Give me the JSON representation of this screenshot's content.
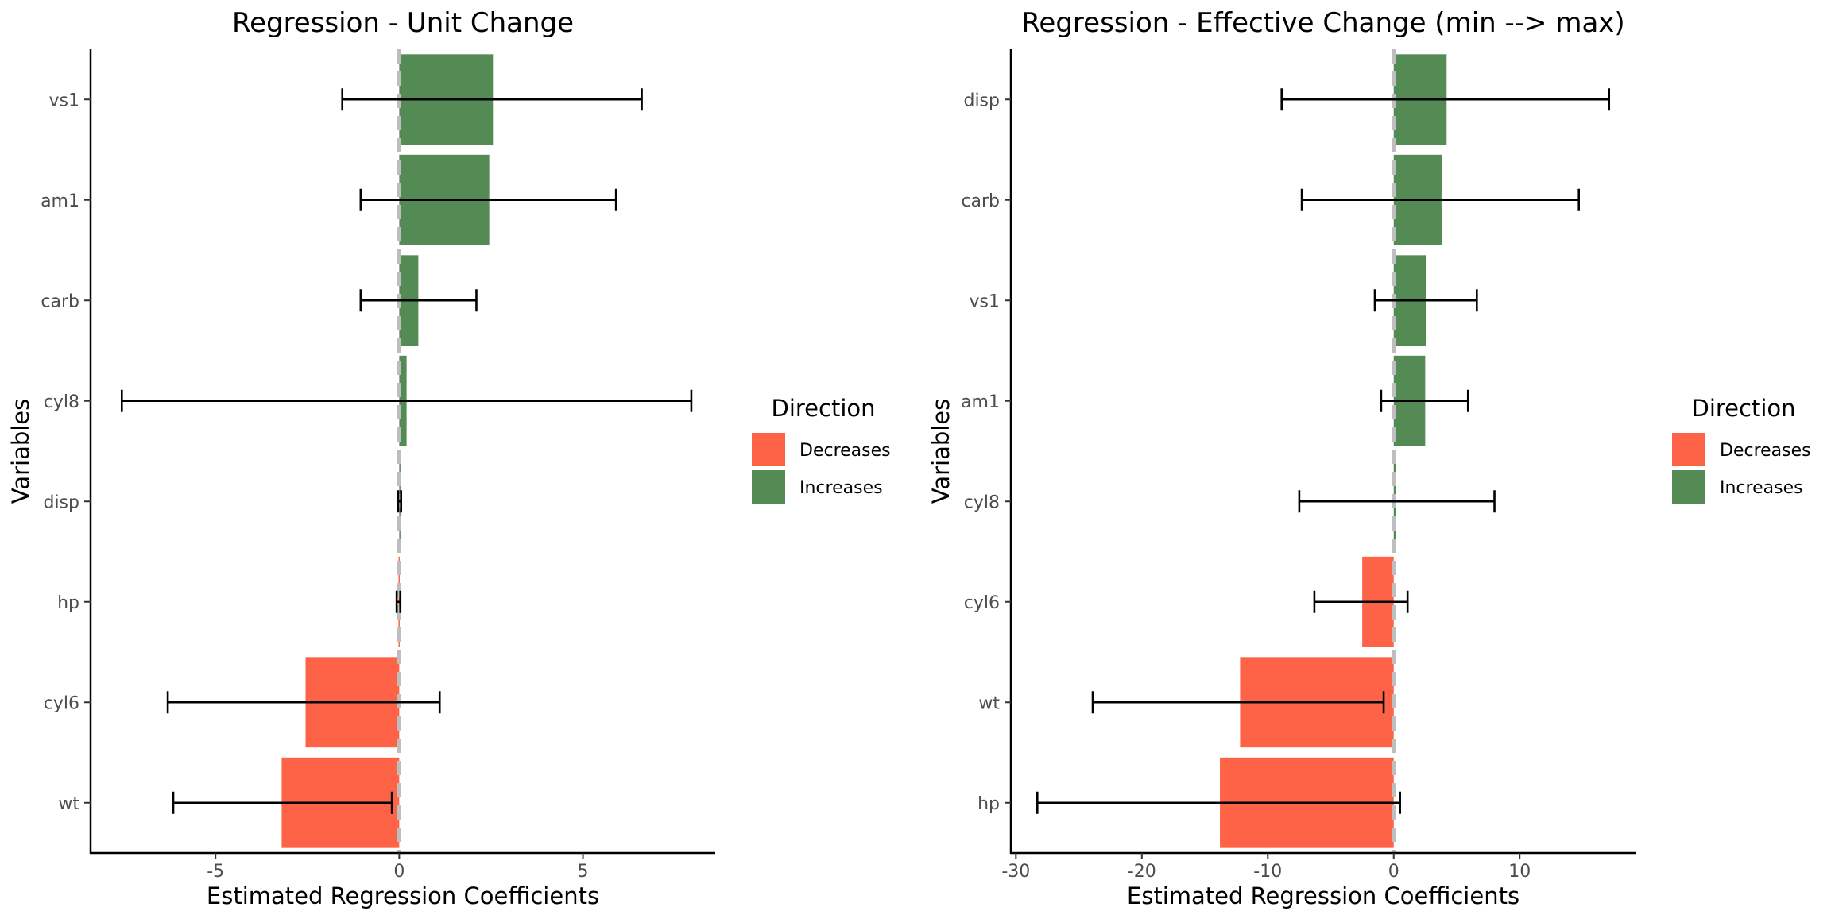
{
  "chart_data": [
    {
      "type": "bar",
      "orientation": "horizontal",
      "title": "Regression - Unit Change",
      "xlabel": "Estimated Regression Coefficients",
      "ylabel": "Variables",
      "xlim": [
        -8.4,
        8.6
      ],
      "xticks": [
        -5,
        0,
        5
      ],
      "categories": [
        "vs1",
        "am1",
        "carb",
        "cyl8",
        "disp",
        "hp",
        "cyl6",
        "wt"
      ],
      "values": [
        2.55,
        2.45,
        0.52,
        0.2,
        0.01,
        -0.02,
        -2.55,
        -3.2
      ],
      "error_low": [
        -1.55,
        -1.05,
        -1.05,
        -7.55,
        -0.03,
        -0.07,
        -6.3,
        -6.15
      ],
      "error_high": [
        6.6,
        5.9,
        2.1,
        7.95,
        0.05,
        0.03,
        1.1,
        -0.2
      ],
      "direction": [
        "Increases",
        "Increases",
        "Increases",
        "Increases",
        "Increases",
        "Decreases",
        "Decreases",
        "Decreases"
      ],
      "reference_line": 0,
      "grid": false,
      "legend": {
        "title": "Direction",
        "placement": "right",
        "entries": [
          {
            "label": "Decreases",
            "color": "#FF6347"
          },
          {
            "label": "Increases",
            "color": "#548B54"
          }
        ]
      }
    },
    {
      "type": "bar",
      "orientation": "horizontal",
      "title": "Regression - Effective Change (min --> max)",
      "xlabel": "Estimated Regression Coefficients",
      "ylabel": "Variables",
      "xlim": [
        -30.4,
        19.2
      ],
      "xticks": [
        -30,
        -20,
        -10,
        0,
        10
      ],
      "categories": [
        "disp",
        "carb",
        "vs1",
        "am1",
        "cyl8",
        "cyl6",
        "wt",
        "hp"
      ],
      "values": [
        4.2,
        3.8,
        2.6,
        2.5,
        0.2,
        -2.5,
        -12.2,
        -13.8
      ],
      "error_low": [
        -8.9,
        -7.3,
        -1.5,
        -1.0,
        -7.5,
        -6.3,
        -23.9,
        -28.3
      ],
      "error_high": [
        17.1,
        14.7,
        6.6,
        5.9,
        8.0,
        1.1,
        -0.8,
        0.5
      ],
      "direction": [
        "Increases",
        "Increases",
        "Increases",
        "Increases",
        "Increases",
        "Decreases",
        "Decreases",
        "Decreases"
      ],
      "reference_line": 0,
      "grid": false,
      "legend": {
        "title": "Direction",
        "placement": "right",
        "entries": [
          {
            "label": "Decreases",
            "color": "#FF6347"
          },
          {
            "label": "Increases",
            "color": "#548B54"
          }
        ]
      }
    }
  ]
}
